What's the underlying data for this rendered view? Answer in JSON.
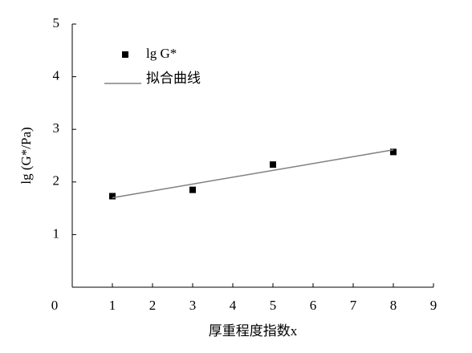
{
  "chart_data": {
    "type": "scatter",
    "xlabel": "厚重程度指数x",
    "ylabel": "lg (G*/Pa)",
    "xlim": [
      0,
      9
    ],
    "xticks": [
      0,
      1,
      2,
      3,
      4,
      5,
      6,
      7,
      8,
      9
    ],
    "ylim": [
      0,
      5
    ],
    "yticks": [
      1,
      2,
      3,
      4,
      5
    ],
    "legend": "upper left",
    "series": [
      {
        "name": "lg G*",
        "type": "scatter",
        "color": "#000000",
        "x": [
          1,
          3,
          5,
          8
        ],
        "values": [
          1.73,
          1.85,
          2.33,
          2.57
        ]
      },
      {
        "name": "拟合曲线",
        "type": "line",
        "color": "#808080",
        "x": [
          1,
          8
        ],
        "values": [
          1.7,
          2.61
        ]
      }
    ]
  }
}
